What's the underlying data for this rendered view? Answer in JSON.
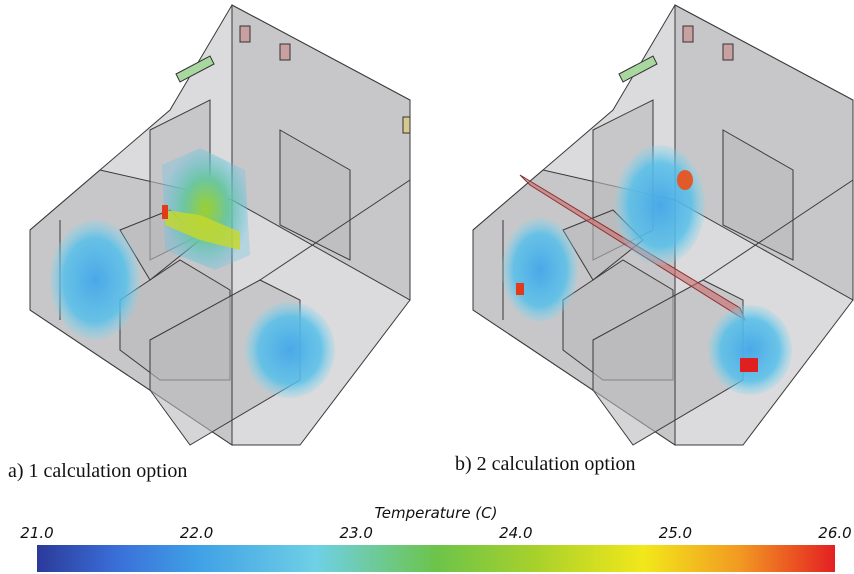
{
  "panels": [
    {
      "caption": "a) 1 calculation option"
    },
    {
      "caption": "b) 2 calculation option"
    }
  ],
  "colorbar": {
    "title": "Temperature (C)",
    "range": [
      21,
      26
    ],
    "ticks": [
      {
        "value": 21,
        "label": "21.0"
      },
      {
        "value": 22,
        "label": "22.0"
      },
      {
        "value": 23,
        "label": "23.0"
      },
      {
        "value": 24,
        "label": "24.0"
      },
      {
        "value": 25,
        "label": "25.0"
      },
      {
        "value": 26,
        "label": "26.0"
      }
    ]
  }
}
